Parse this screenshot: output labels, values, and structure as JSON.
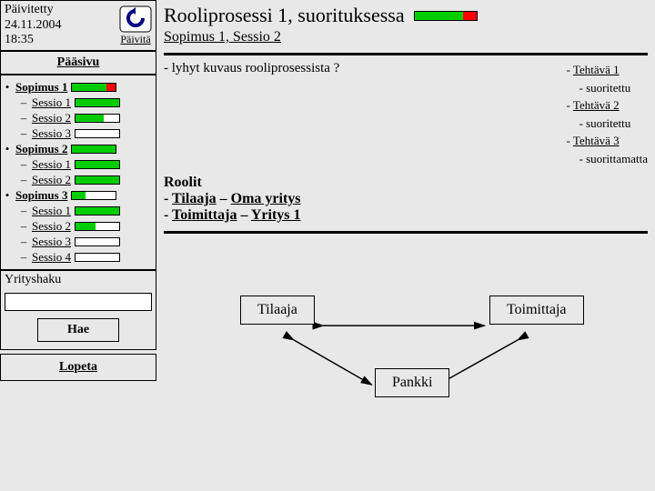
{
  "sidebar": {
    "updated_label": "Päivitetty",
    "updated_date": "24.11.2004",
    "updated_time": "18:35",
    "refresh": "Päivitä",
    "mainmenu": "Pääsivu",
    "tree": [
      {
        "label": "Sopimus 1",
        "green": 78,
        "red": 22,
        "subs": [
          {
            "label": "Sessio 1",
            "green": 100,
            "red": 0
          },
          {
            "label": "Sessio 2",
            "green": 65,
            "red": 0
          },
          {
            "label": "Sessio 3",
            "green": 0,
            "red": 0
          }
        ]
      },
      {
        "label": "Sopimus 2",
        "green": 100,
        "red": 0,
        "subs": [
          {
            "label": "Sessio 1",
            "green": 100,
            "red": 0
          },
          {
            "label": "Sessio 2",
            "green": 100,
            "red": 0
          }
        ]
      },
      {
        "label": "Sopimus 3",
        "green": 30,
        "red": 0,
        "subs": [
          {
            "label": "Sessio 1",
            "green": 100,
            "red": 0
          },
          {
            "label": "Sessio 2",
            "green": 45,
            "red": 0
          },
          {
            "label": "Sessio 3",
            "green": 0,
            "red": 0
          },
          {
            "label": "Sessio 4",
            "green": 0,
            "red": 0
          }
        ]
      }
    ],
    "search_label": "Yrityshaku",
    "search_btn": "Hae",
    "quit": "Lopeta",
    "colors": {
      "green": "#00cc00",
      "red": "#ff0000",
      "border": "#000000",
      "bg": "#e8e8e8"
    }
  },
  "main": {
    "title": "Rooliprosessi 1, suorituksessa",
    "title_bar": {
      "green": 78,
      "red": 22
    },
    "subtitle": "Sopimus 1, Sessio 2",
    "desc": "- lyhyt kuvaus rooliprosessista ?",
    "tasks": [
      {
        "label": "Tehtävä 1",
        "note": "suoritettu"
      },
      {
        "label": "Tehtävä 2",
        "note": "suoritettu"
      },
      {
        "label": "Tehtävä 3",
        "note": "suorittamatta"
      }
    ],
    "roles_header": "Roolit",
    "roles": [
      {
        "role": "Tilaaja",
        "org": "Oma yritys"
      },
      {
        "role": "Toimittaja",
        "org": "Yritys 1"
      }
    ],
    "nodes": {
      "tilaaja": "Tilaaja",
      "toimittaja": "Toimittaja",
      "pankki": "Pankki"
    }
  }
}
